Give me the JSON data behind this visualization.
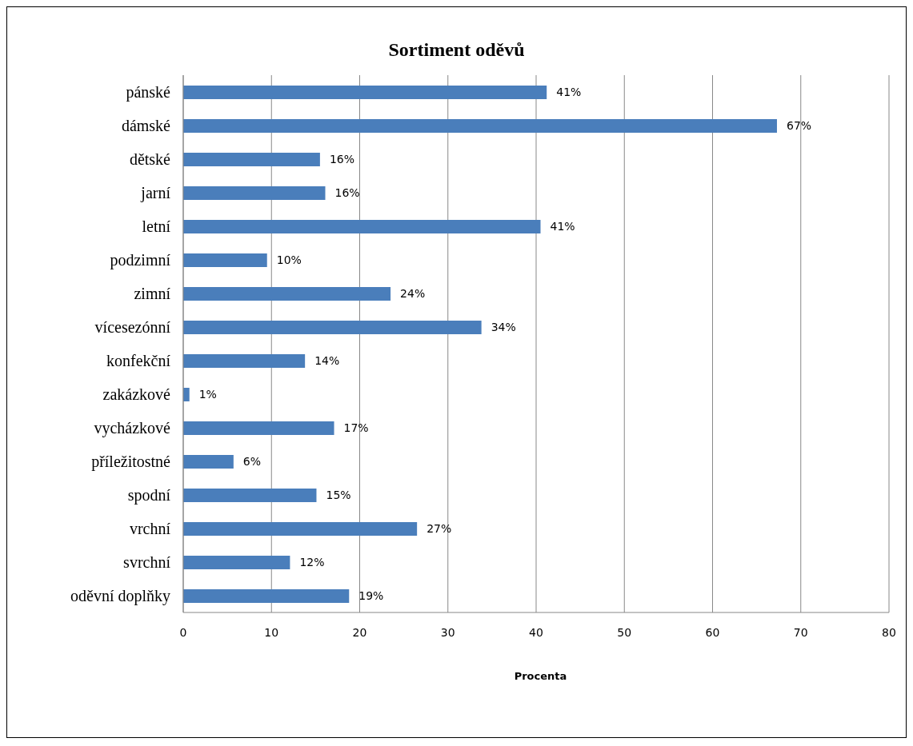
{
  "chart_data": {
    "type": "bar",
    "orientation": "horizontal",
    "title": "Sortiment oděvů",
    "xlabel": "Procenta",
    "categories": [
      "pánské",
      "dámské",
      "dětské",
      "jarní",
      "letní",
      "podzimní",
      "zimní",
      "vícesezónní",
      "konfekční",
      "zakázkové",
      "vycházkové",
      "příležitostné",
      "spodní",
      "vrchní",
      "svrchní",
      "oděvní doplňky"
    ],
    "values": [
      41.2,
      67.3,
      15.5,
      16.1,
      40.5,
      9.5,
      23.5,
      33.8,
      13.8,
      0.7,
      17.1,
      5.7,
      15.1,
      26.5,
      12.1,
      18.8
    ],
    "value_labels": [
      "41%",
      "67%",
      "16%",
      "16%",
      "41%",
      "10%",
      "24%",
      "34%",
      "14%",
      "1%",
      "17%",
      "6%",
      "15%",
      "27%",
      "12%",
      "19%"
    ],
    "color": "#4a7ebb",
    "xlim": [
      0,
      80
    ],
    "xticks": [
      0,
      10,
      20,
      30,
      40,
      50,
      60,
      70,
      80
    ],
    "grid": "x",
    "legend": false
  }
}
